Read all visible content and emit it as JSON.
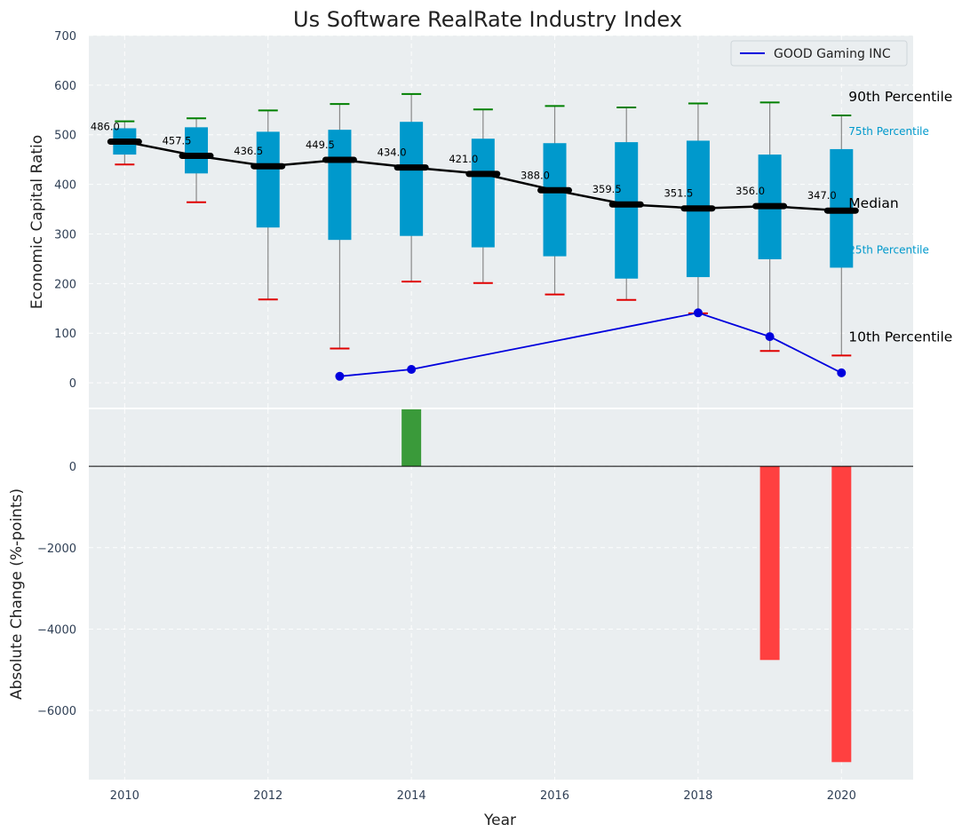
{
  "chart_data": [
    {
      "type": "box",
      "title": "Us Software RealRate Industry Index",
      "xlabel": "",
      "ylabel": "Economic Capital Ratio",
      "ylim": [
        -50,
        700
      ],
      "xlim": [
        2009.5,
        2021
      ],
      "y_ticks": [
        "0",
        "100",
        "200",
        "300",
        "400",
        "500",
        "600",
        "700"
      ],
      "grid": true,
      "legend_position": "top-right",
      "colors": {
        "box": "#0099cc",
        "median": "#000000",
        "p90_cap": "#008000",
        "p10_cap": "#e00000",
        "company": "#0000dd",
        "whisker": "#888888"
      },
      "years": [
        2010,
        2011,
        2012,
        2013,
        2014,
        2015,
        2016,
        2017,
        2018,
        2019,
        2020
      ],
      "p90": [
        527,
        533,
        549,
        562,
        582,
        551,
        558,
        555,
        563,
        565,
        539
      ],
      "p75": [
        513,
        515,
        506,
        510,
        526,
        492,
        483,
        485,
        488,
        460,
        471
      ],
      "median": [
        486.0,
        457.5,
        436.5,
        449.5,
        434.0,
        421.0,
        388.0,
        359.5,
        351.5,
        356.0,
        347.0
      ],
      "p25": [
        460,
        422,
        313,
        288,
        296,
        273,
        255,
        210,
        213,
        249,
        232
      ],
      "p10": [
        440,
        364,
        168,
        69,
        204,
        201,
        178,
        167,
        140,
        64,
        55
      ],
      "median_labels": [
        "486.0",
        "457.5",
        "436.5",
        "449.5",
        "434.0",
        "421.0",
        "388.0",
        "359.5",
        "351.5",
        "356.0",
        "347.0"
      ],
      "series": [
        {
          "name": "GOOD Gaming INC",
          "x": [
            2013,
            2014,
            2018,
            2019,
            2020
          ],
          "values": [
            13,
            27,
            141,
            93,
            20
          ]
        }
      ],
      "annotations": [
        "90th Percentile",
        "75th Percentile",
        "Median",
        "25th Percentile",
        "10th Percentile"
      ]
    },
    {
      "type": "bar",
      "xlabel": "Year",
      "ylabel": "Absolute Change (%-points)",
      "ylim": [
        -7700,
        1400
      ],
      "x_ticks": [
        "2010",
        "2012",
        "2014",
        "2016",
        "2018",
        "2020"
      ],
      "y_ticks": [
        "0",
        "−2000",
        "−4000",
        "−6000"
      ],
      "grid": true,
      "colors": {
        "positive": "#3a9a3a",
        "negative": "#ff4040"
      },
      "categories": [
        2014,
        2019,
        2020
      ],
      "values": [
        1400,
        -4760,
        -7270
      ]
    }
  ]
}
